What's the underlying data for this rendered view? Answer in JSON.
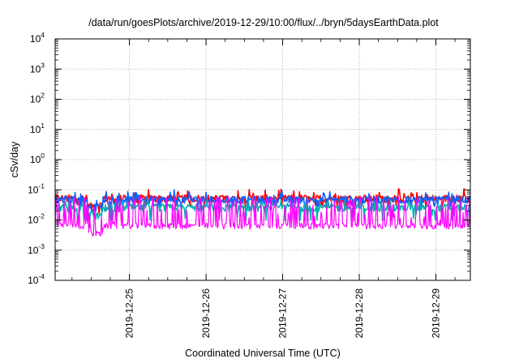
{
  "chart_data": {
    "type": "line",
    "title": "/data/run/goesPlots/archive/2019-12-29/10:00/flux/../bryn/5daysEarthData.plot",
    "xlabel": "Coordinated Universal Time (UTC)",
    "ylabel": "cSv/day",
    "yscale": "log",
    "ylim_exp": [
      -4,
      4
    ],
    "y_ticks": [
      {
        "base": "10",
        "exp": "4"
      },
      {
        "base": "10",
        "exp": "3"
      },
      {
        "base": "10",
        "exp": "2"
      },
      {
        "base": "10",
        "exp": "1"
      },
      {
        "base": "10",
        "exp": "0"
      },
      {
        "base": "10",
        "exp": "-1"
      },
      {
        "base": "10",
        "exp": "-2"
      },
      {
        "base": "10",
        "exp": "-3"
      },
      {
        "base": "10",
        "exp": "-4"
      }
    ],
    "x_ticks": [
      "2019-12-25",
      "2019-12-26",
      "2019-12-27",
      "2019-12-28",
      "2019-12-29"
    ],
    "xlim_days": [
      -0.97,
      4.45
    ],
    "grid": true,
    "series": [
      {
        "color": "#ff0000",
        "level": 0.05,
        "low": 0.03,
        "high": 0.11
      },
      {
        "color": "#1060ff",
        "level": 0.045,
        "low": 0.028,
        "high": 0.1
      },
      {
        "color": "#00b0b0",
        "level": 0.025,
        "low": 0.01,
        "high": 0.05
      },
      {
        "color": "#ff00ff",
        "level": 0.007,
        "low": 0.005,
        "high": 0.06
      }
    ]
  }
}
